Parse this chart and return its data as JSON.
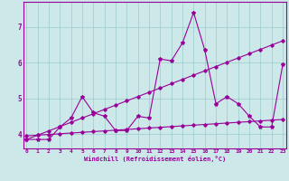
{
  "xlabel": "Windchill (Refroidissement éolien,°C)",
  "bg_color": "#cce8e8",
  "grid_color": "#99cccc",
  "line_color": "#990099",
  "x": [
    0,
    1,
    2,
    3,
    4,
    5,
    6,
    7,
    8,
    9,
    10,
    11,
    12,
    13,
    14,
    15,
    16,
    17,
    18,
    19,
    20,
    21,
    22,
    23
  ],
  "series1": [
    3.85,
    3.85,
    3.85,
    4.2,
    4.45,
    5.05,
    4.6,
    4.5,
    4.1,
    4.1,
    4.5,
    4.45,
    6.1,
    6.05,
    6.55,
    7.4,
    6.35,
    4.85,
    5.05,
    4.85,
    4.5,
    4.2,
    4.2,
    5.95
  ],
  "linear1": [
    3.85,
    3.97,
    4.09,
    4.21,
    4.33,
    4.45,
    4.57,
    4.69,
    4.81,
    4.93,
    5.05,
    5.17,
    5.29,
    5.41,
    5.53,
    5.65,
    5.77,
    5.89,
    6.01,
    6.13,
    6.25,
    6.37,
    6.49,
    6.61
  ],
  "linear2": [
    3.95,
    3.97,
    3.99,
    4.01,
    4.03,
    4.05,
    4.07,
    4.09,
    4.11,
    4.13,
    4.15,
    4.17,
    4.19,
    4.21,
    4.23,
    4.25,
    4.27,
    4.29,
    4.31,
    4.33,
    4.35,
    4.37,
    4.39,
    4.41
  ],
  "ylim": [
    3.6,
    7.7
  ],
  "yticks": [
    4,
    5,
    6,
    7
  ],
  "xticks": [
    0,
    1,
    2,
    3,
    4,
    5,
    6,
    7,
    8,
    9,
    10,
    11,
    12,
    13,
    14,
    15,
    16,
    17,
    18,
    19,
    20,
    21,
    22,
    23
  ]
}
